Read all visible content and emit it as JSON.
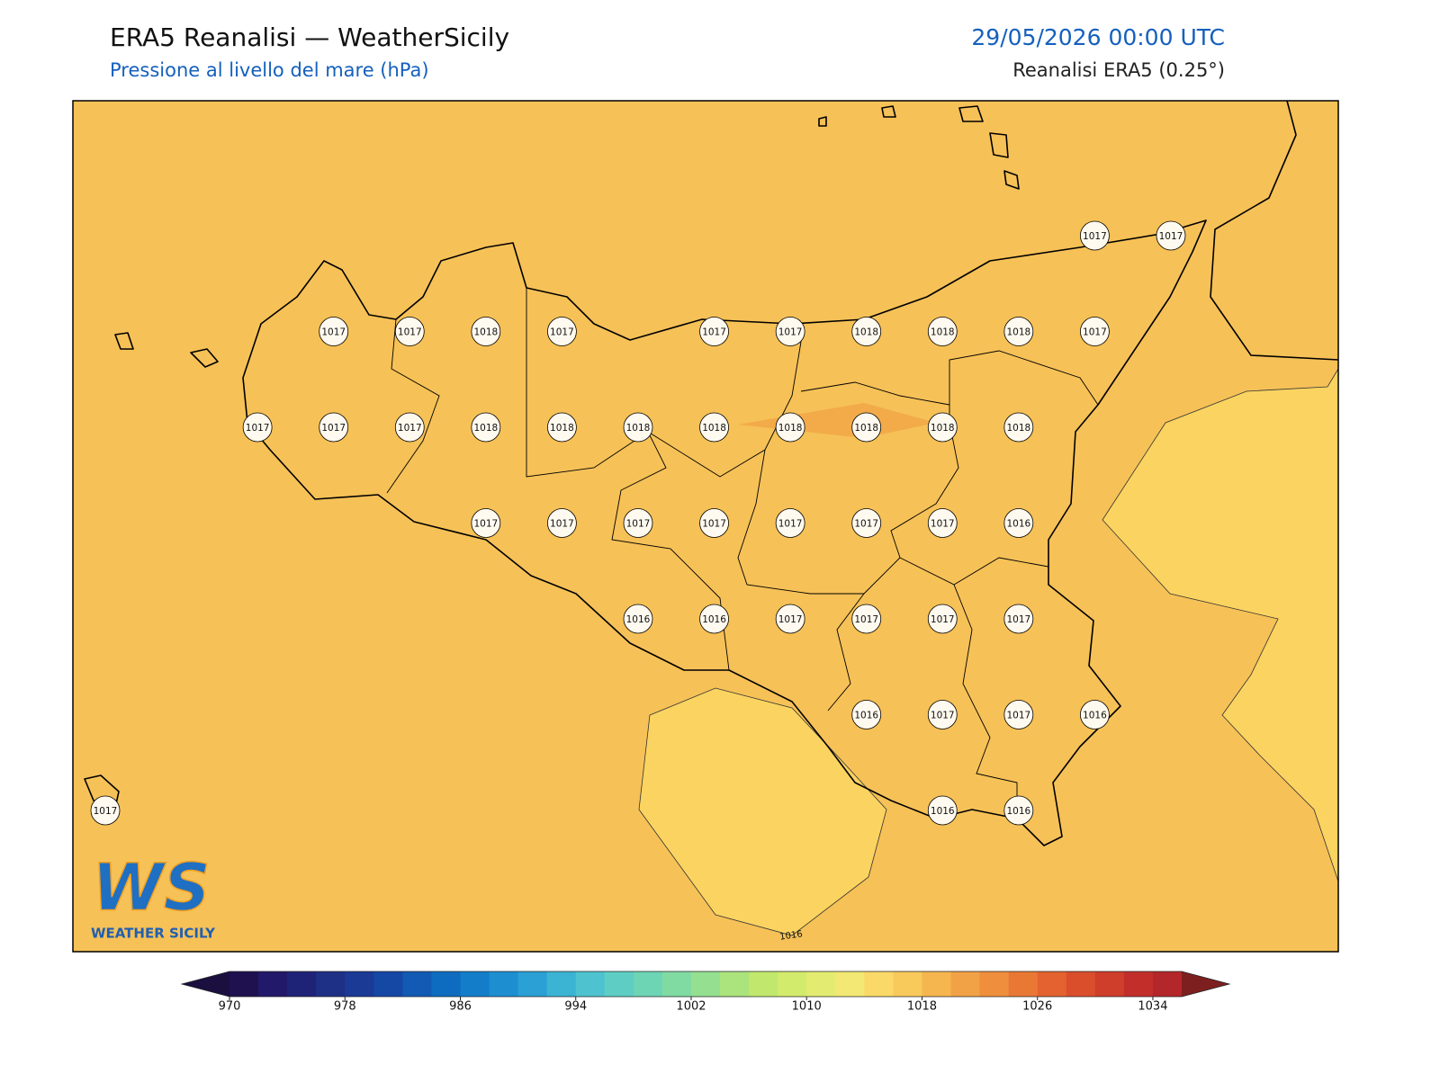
{
  "header": {
    "title": "ERA5 Reanalisi — WeatherSicily",
    "subtitle": "Pressione al livello del mare (hPa)",
    "datetime": "29/05/2026 00:00 UTC",
    "source": "Reanalisi ERA5 (0.25°)"
  },
  "map": {
    "pressure_labels": [
      1017,
      1017,
      1017,
      1017,
      1018,
      1017,
      1017,
      1017,
      1018,
      1018,
      1018,
      1017,
      1017,
      1017,
      1017,
      1018,
      1018,
      1018,
      1018,
      1018,
      1018,
      1018,
      1018,
      1017,
      1017,
      1017,
      1017,
      1017,
      1017,
      1017,
      1016,
      1016,
      1016,
      1017,
      1017,
      1017,
      1017,
      1016,
      1017,
      1017,
      1016,
      1017,
      1016,
      1016
    ],
    "contour_labels": [
      1016
    ],
    "logo": {
      "mark": "WS",
      "text": "WEATHER SICILY"
    }
  },
  "colorbar": {
    "lim": [
      970,
      1036
    ],
    "ticks": [
      970,
      978,
      986,
      994,
      1002,
      1010,
      1018,
      1026,
      1034
    ],
    "under_color": "#1b0f40",
    "over_color": "#7d1f1f",
    "colors": [
      "#1f1150",
      "#23196a",
      "#1f2378",
      "#1e2f86",
      "#1a3a96",
      "#1547a5",
      "#125ab3",
      "#0e6cc0",
      "#137dc9",
      "#1d8ed0",
      "#2aa0d4",
      "#3bb3d3",
      "#4ec3cf",
      "#5ecec4",
      "#6dd5b4",
      "#80dba3",
      "#95df90",
      "#abe47c",
      "#c1e86d",
      "#d3eb6c",
      "#e3ec70",
      "#f2e873",
      "#fbd968",
      "#f8c95b",
      "#f5b650",
      "#f2a246",
      "#ef8e3d",
      "#ea7835",
      "#e3622f",
      "#da4e2c",
      "#cf3d2b",
      "#c22f2b",
      "#b3262a"
    ]
  }
}
